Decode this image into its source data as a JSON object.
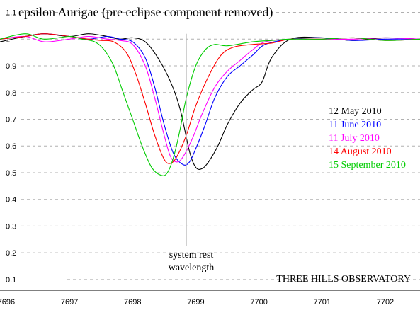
{
  "chart_data": {
    "type": "line",
    "title": "epsilon Aurigae   (pre eclipse component removed)",
    "xlabel": "",
    "ylabel": "",
    "xlim": [
      7695.9,
      7702.55
    ],
    "ylim": [
      0.06,
      1.12
    ],
    "x_ticks": [
      "7696",
      "7697",
      "7698",
      "7699",
      "7700",
      "7701",
      "7702"
    ],
    "x_tick_values": [
      7696,
      7697,
      7698,
      7699,
      7700,
      7701,
      7702
    ],
    "y_ticks": [
      "0.1",
      "0.2",
      "0.3",
      "0.4",
      "0.5",
      "0.6",
      "0.7",
      "0.8",
      "0.9",
      "1",
      "1.1"
    ],
    "y_tick_values": [
      0.1,
      0.2,
      0.3,
      0.4,
      0.5,
      0.6,
      0.7,
      0.8,
      0.9,
      1.0,
      1.1
    ],
    "grid": "horizontal dashed",
    "legend_position": "right",
    "series": [
      {
        "name": "12 May 2010",
        "color": "#000000",
        "x": [
          7695.9,
          7696.3,
          7696.6,
          7697.0,
          7697.3,
          7697.6,
          7697.8,
          7698.0,
          7698.2,
          7698.4,
          7698.6,
          7698.75,
          7698.9,
          7699.0,
          7699.1,
          7699.2,
          7699.35,
          7699.5,
          7699.7,
          7699.9,
          7700.05,
          7700.2,
          7700.5,
          7701.0,
          7701.5,
          7702.0,
          7702.55
        ],
        "y": [
          0.99,
          1.01,
          1.02,
          1.01,
          1.02,
          1.01,
          1.0,
          1.005,
          0.99,
          0.93,
          0.84,
          0.74,
          0.58,
          0.52,
          0.515,
          0.54,
          0.6,
          0.68,
          0.76,
          0.81,
          0.84,
          0.93,
          1.0,
          1.005,
          0.995,
          1.005,
          1.0
        ]
      },
      {
        "name": "11 June 2010",
        "color": "#0000ff",
        "x": [
          7695.9,
          7696.3,
          7696.6,
          7697.0,
          7697.3,
          7697.6,
          7697.8,
          7698.0,
          7698.2,
          7698.35,
          7698.5,
          7698.65,
          7698.8,
          7698.9,
          7699.0,
          7699.15,
          7699.3,
          7699.5,
          7699.7,
          7699.9,
          7700.1,
          7700.5,
          7701.0,
          7701.5,
          7702.0,
          7702.55
        ],
        "y": [
          1.0,
          1.01,
          1.02,
          1.01,
          1.0,
          1.01,
          1.0,
          0.99,
          0.93,
          0.82,
          0.68,
          0.57,
          0.53,
          0.54,
          0.59,
          0.68,
          0.78,
          0.86,
          0.9,
          0.94,
          0.98,
          1.0,
          1.005,
          0.995,
          1.0,
          1.0
        ]
      },
      {
        "name": "11 July 2010",
        "color": "#ff00ff",
        "x": [
          7695.9,
          7696.3,
          7696.6,
          7697.0,
          7697.3,
          7697.6,
          7697.8,
          7698.0,
          7698.2,
          7698.35,
          7698.5,
          7698.6,
          7698.7,
          7698.8,
          7698.95,
          7699.1,
          7699.3,
          7699.5,
          7699.7,
          7699.9,
          7700.1,
          7700.5,
          7701.0,
          7701.5,
          7702.0,
          7702.55
        ],
        "y": [
          1.0,
          1.01,
          0.99,
          1.0,
          1.01,
          1.0,
          0.995,
          0.98,
          0.9,
          0.78,
          0.64,
          0.56,
          0.54,
          0.56,
          0.63,
          0.72,
          0.82,
          0.88,
          0.92,
          0.96,
          0.99,
          1.0,
          1.0,
          1.0,
          1.005,
          1.0
        ]
      },
      {
        "name": "14 August 2010",
        "color": "#ff0000",
        "x": [
          7695.9,
          7696.3,
          7696.6,
          7697.0,
          7697.3,
          7697.5,
          7697.7,
          7697.9,
          7698.05,
          7698.2,
          7698.35,
          7698.5,
          7698.6,
          7698.7,
          7698.85,
          7699.0,
          7699.2,
          7699.4,
          7699.6,
          7699.9,
          7700.2,
          7700.5,
          7701.0,
          7701.5,
          7702.0,
          7702.55
        ],
        "y": [
          1.0,
          1.01,
          1.02,
          1.01,
          1.0,
          0.995,
          0.99,
          0.95,
          0.87,
          0.76,
          0.64,
          0.55,
          0.535,
          0.56,
          0.64,
          0.75,
          0.86,
          0.94,
          0.97,
          0.98,
          0.985,
          1.0,
          1.0,
          1.005,
          0.995,
          1.0
        ]
      },
      {
        "name": "15 September 2010",
        "color": "#00cc00",
        "x": [
          7695.9,
          7696.3,
          7696.6,
          7697.0,
          7697.2,
          7697.4,
          7697.55,
          7697.7,
          7697.85,
          7698.0,
          7698.15,
          7698.3,
          7698.45,
          7698.55,
          7698.65,
          7698.75,
          7698.85,
          7699.0,
          7699.15,
          7699.3,
          7699.5,
          7699.9,
          7700.2,
          7700.5,
          7701.0,
          7701.5,
          7702.0,
          7702.55
        ],
        "y": [
          1.0,
          1.02,
          1.0,
          1.01,
          1.0,
          0.99,
          0.96,
          0.9,
          0.8,
          0.7,
          0.6,
          0.52,
          0.49,
          0.5,
          0.56,
          0.66,
          0.78,
          0.9,
          0.96,
          0.98,
          0.975,
          0.99,
          0.995,
          1.0,
          1.0,
          1.005,
          0.995,
          1.0
        ]
      }
    ],
    "annotations": {
      "rest_line_x": 7698.85,
      "rest_label_line1": "system rest",
      "rest_label_line2": "wavelength",
      "observatory": "THREE HILLS OBSERVATORY"
    }
  },
  "colors": {
    "background": "#ffffff",
    "grid": "#b0b0b0",
    "rest_line": "#b8b8b8",
    "axis": "#808080"
  }
}
